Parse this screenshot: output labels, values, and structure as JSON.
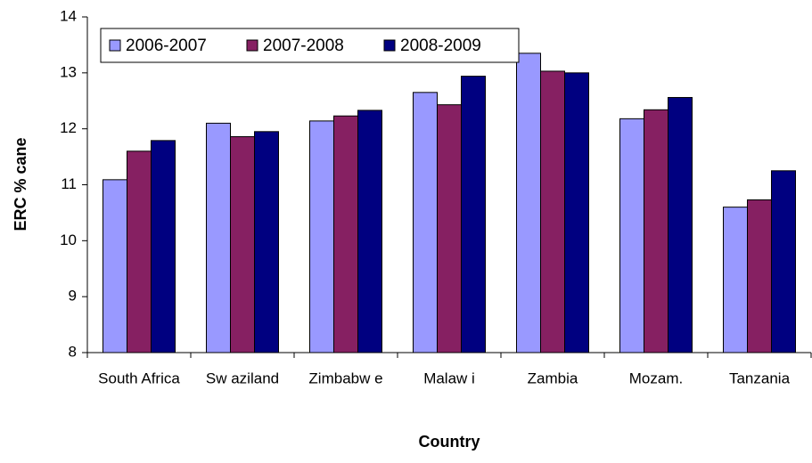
{
  "chart_data": {
    "type": "bar",
    "x_label": "Country",
    "y_label": "ERC % cane",
    "categories": [
      "South Africa",
      "Sw aziland",
      "Zimbabw e",
      "Malaw i",
      "Zambia",
      "Mozam.",
      "Tanzania"
    ],
    "series": [
      {
        "name": "2006-2007",
        "color": "#9999ff",
        "values": [
          11.09,
          12.1,
          12.14,
          12.65,
          13.35,
          12.18,
          10.6
        ]
      },
      {
        "name": "2007-2008",
        "color": "#862062",
        "values": [
          11.6,
          11.86,
          12.23,
          12.43,
          13.03,
          12.34,
          10.73
        ]
      },
      {
        "name": "2008-2009",
        "color": "#000080",
        "values": [
          11.79,
          11.95,
          12.33,
          12.94,
          13.0,
          12.56,
          11.25
        ]
      }
    ],
    "ylim": [
      8,
      14
    ],
    "yticks": [
      8,
      9,
      10,
      11,
      12,
      13,
      14
    ],
    "grid": false,
    "legend": "top-left"
  }
}
